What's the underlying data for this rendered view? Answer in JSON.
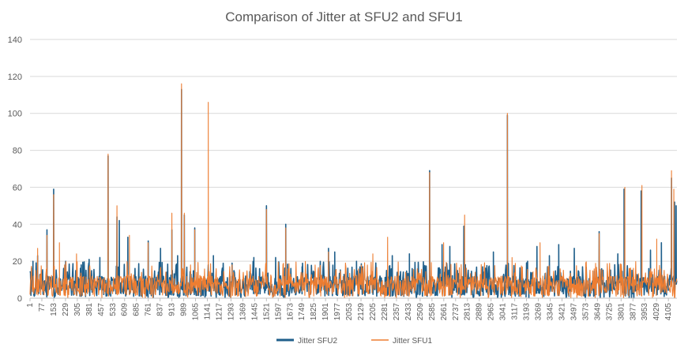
{
  "chart_data": {
    "type": "line",
    "title": "Comparison of Jitter at SFU2 and SFU1",
    "xlabel": "",
    "ylabel": "",
    "ylim": [
      0,
      140
    ],
    "yticks": [
      0,
      20,
      40,
      60,
      80,
      100,
      120,
      140
    ],
    "xlim": [
      1,
      4160
    ],
    "xticks": [
      1,
      77,
      153,
      229,
      305,
      381,
      457,
      533,
      609,
      685,
      761,
      837,
      913,
      989,
      1065,
      1141,
      1217,
      1293,
      1369,
      1445,
      1521,
      1597,
      1673,
      1749,
      1825,
      1901,
      1977,
      2053,
      2129,
      2205,
      2281,
      2357,
      2433,
      2509,
      2585,
      2661,
      2737,
      2813,
      2889,
      2965,
      3041,
      3117,
      3193,
      3269,
      3345,
      3421,
      3497,
      3573,
      3649,
      3725,
      3801,
      3877,
      3953,
      4029,
      4105
    ],
    "grid": true,
    "legend_position": "bottom",
    "series": [
      {
        "name": "Jitter SFU2",
        "color": "#1f5f8b",
        "peaks": [
          {
            "x": 20,
            "y": 20
          },
          {
            "x": 50,
            "y": 23
          },
          {
            "x": 110,
            "y": 37
          },
          {
            "x": 153,
            "y": 59
          },
          {
            "x": 230,
            "y": 20
          },
          {
            "x": 330,
            "y": 18
          },
          {
            "x": 381,
            "y": 21
          },
          {
            "x": 450,
            "y": 22
          },
          {
            "x": 503,
            "y": 77
          },
          {
            "x": 560,
            "y": 44
          },
          {
            "x": 575,
            "y": 42
          },
          {
            "x": 630,
            "y": 33
          },
          {
            "x": 761,
            "y": 31
          },
          {
            "x": 840,
            "y": 27
          },
          {
            "x": 913,
            "y": 37
          },
          {
            "x": 950,
            "y": 23
          },
          {
            "x": 975,
            "y": 113
          },
          {
            "x": 993,
            "y": 45
          },
          {
            "x": 1060,
            "y": 38
          },
          {
            "x": 1180,
            "y": 23
          },
          {
            "x": 1300,
            "y": 19
          },
          {
            "x": 1440,
            "y": 22
          },
          {
            "x": 1521,
            "y": 50
          },
          {
            "x": 1580,
            "y": 22
          },
          {
            "x": 1645,
            "y": 40
          },
          {
            "x": 1750,
            "y": 17
          },
          {
            "x": 1920,
            "y": 27
          },
          {
            "x": 1960,
            "y": 25
          },
          {
            "x": 2100,
            "y": 20
          },
          {
            "x": 2330,
            "y": 23
          },
          {
            "x": 2440,
            "y": 24
          },
          {
            "x": 2570,
            "y": 69
          },
          {
            "x": 2650,
            "y": 29
          },
          {
            "x": 2700,
            "y": 28
          },
          {
            "x": 2790,
            "y": 39
          },
          {
            "x": 2980,
            "y": 25
          },
          {
            "x": 3070,
            "y": 99
          },
          {
            "x": 3200,
            "y": 20
          },
          {
            "x": 3260,
            "y": 28
          },
          {
            "x": 3340,
            "y": 23
          },
          {
            "x": 3400,
            "y": 29
          },
          {
            "x": 3500,
            "y": 27
          },
          {
            "x": 3660,
            "y": 36
          },
          {
            "x": 3780,
            "y": 24
          },
          {
            "x": 3820,
            "y": 59
          },
          {
            "x": 3930,
            "y": 58
          },
          {
            "x": 3990,
            "y": 26
          },
          {
            "x": 4060,
            "y": 30
          },
          {
            "x": 4125,
            "y": 65
          },
          {
            "x": 4145,
            "y": 52
          },
          {
            "x": 4155,
            "y": 50
          }
        ]
      },
      {
        "name": "Jitter SFU1",
        "color": "#ed7d31",
        "peaks": [
          {
            "x": 50,
            "y": 27
          },
          {
            "x": 110,
            "y": 34
          },
          {
            "x": 153,
            "y": 56
          },
          {
            "x": 190,
            "y": 30
          },
          {
            "x": 300,
            "y": 24
          },
          {
            "x": 503,
            "y": 78
          },
          {
            "x": 560,
            "y": 50
          },
          {
            "x": 640,
            "y": 34
          },
          {
            "x": 760,
            "y": 30
          },
          {
            "x": 913,
            "y": 46
          },
          {
            "x": 975,
            "y": 116
          },
          {
            "x": 993,
            "y": 46
          },
          {
            "x": 1060,
            "y": 37
          },
          {
            "x": 1147,
            "y": 106
          },
          {
            "x": 1300,
            "y": 18
          },
          {
            "x": 1521,
            "y": 48
          },
          {
            "x": 1645,
            "y": 38
          },
          {
            "x": 1920,
            "y": 25
          },
          {
            "x": 2205,
            "y": 24
          },
          {
            "x": 2300,
            "y": 33
          },
          {
            "x": 2570,
            "y": 68
          },
          {
            "x": 2660,
            "y": 30
          },
          {
            "x": 2795,
            "y": 45
          },
          {
            "x": 3070,
            "y": 100
          },
          {
            "x": 3100,
            "y": 22
          },
          {
            "x": 3280,
            "y": 30
          },
          {
            "x": 3660,
            "y": 35
          },
          {
            "x": 3825,
            "y": 60
          },
          {
            "x": 3935,
            "y": 61
          },
          {
            "x": 4030,
            "y": 32
          },
          {
            "x": 4125,
            "y": 69
          },
          {
            "x": 4140,
            "y": 59
          }
        ]
      }
    ]
  }
}
